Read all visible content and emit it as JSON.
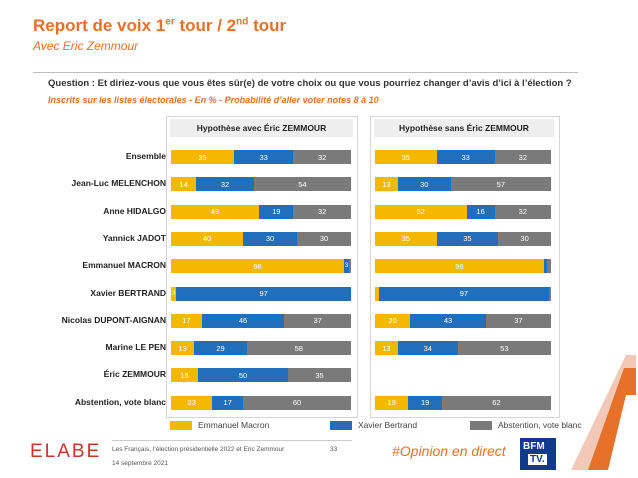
{
  "header": {
    "title_main": "Report de voix 1",
    "title_sup1": "er",
    "title_mid": " tour / 2",
    "title_sup2": "nd",
    "title_end": " tour",
    "subtitle": "Avec Eric Zemmour",
    "question": "Question : Et diriez-vous que vous êtes sûr(e) de votre choix ou que vous pourriez changer d’avis d’ici à l’élection ?",
    "note": "Inscrits sur les listes électorales - En % - Probabilité d’aller voter notes 8 à 10"
  },
  "colors": {
    "accent": "#e8712a",
    "macron": "#f5b800",
    "bertrand": "#1f6fbd",
    "abstention": "#7a7a7a"
  },
  "chart_data": {
    "type": "bar",
    "stacked": true,
    "orientation": "horizontal",
    "categories": [
      "Ensemble",
      "Jean-Luc MELENCHON",
      "Anne HIDALGO",
      "Yannick JADOT",
      "Emmanuel MACRON",
      "Xavier BERTRAND",
      "Nicolas DUPONT-AIGNAN",
      "Marine LE PEN",
      "Éric ZEMMOUR",
      "Abstention, vote blanc"
    ],
    "legend": [
      "Emmanuel Macron",
      "Xavier Bertrand",
      "Abstention, vote blanc"
    ],
    "legend_position": "bottom",
    "panels": [
      {
        "title": "Hypothèse avec Éric ZEMMOUR",
        "series": [
          {
            "name": "Emmanuel Macron",
            "values": [
              35,
              14,
              49,
              40,
              96,
              3,
              17,
              13,
              15,
              23
            ]
          },
          {
            "name": "Xavier Bertrand",
            "values": [
              33,
              32,
              19,
              30,
              3,
              97,
              46,
              29,
              50,
              17
            ]
          },
          {
            "name": "Abstention, vote blanc",
            "values": [
              32,
              54,
              32,
              30,
              1,
              0,
              37,
              58,
              35,
              60
            ]
          }
        ]
      },
      {
        "title": "Hypothèse sans Éric ZEMMOUR",
        "series": [
          {
            "name": "Emmanuel Macron",
            "values": [
              35,
              13,
              52,
              35,
              96,
              2,
              20,
              13,
              null,
              19
            ]
          },
          {
            "name": "Xavier Bertrand",
            "values": [
              33,
              30,
              16,
              35,
              2,
              97,
              43,
              34,
              null,
              19
            ]
          },
          {
            "name": "Abstention, vote blanc",
            "values": [
              32,
              57,
              32,
              30,
              2,
              1,
              37,
              53,
              null,
              62
            ]
          }
        ]
      }
    ]
  },
  "footer": {
    "brand": "ELABE",
    "source": "Les Français, l’élection présidentielle 2022 et Eric Zemmour",
    "date": "14 septembre 2021",
    "page": "33",
    "hashtag": "#Opinion en direct",
    "bfm_line1": "BFM",
    "bfm_line2": "TV."
  }
}
